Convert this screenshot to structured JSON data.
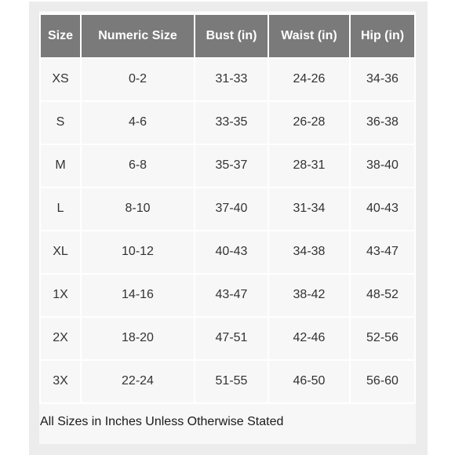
{
  "table": {
    "headers": [
      "Size",
      "Numeric Size",
      "Bust (in)",
      "Waist (in)",
      "Hip (in)"
    ],
    "rows": [
      [
        "XS",
        "0-2",
        "31-33",
        "24-26",
        "34-36"
      ],
      [
        "S",
        "4-6",
        "33-35",
        "26-28",
        "36-38"
      ],
      [
        "M",
        "6-8",
        "35-37",
        "28-31",
        "38-40"
      ],
      [
        "L",
        "8-10",
        "37-40",
        "31-34",
        "40-43"
      ],
      [
        "XL",
        "10-12",
        "40-43",
        "34-38",
        "43-47"
      ],
      [
        "1X",
        "14-16",
        "43-47",
        "38-42",
        "48-52"
      ],
      [
        "2X",
        "18-20",
        "47-51",
        "42-46",
        "52-56"
      ],
      [
        "3X",
        "22-24",
        "51-55",
        "46-50",
        "56-60"
      ]
    ]
  },
  "footer_note": "All Sizes in Inches Unless Otherwise Stated",
  "colors": {
    "header_bg": "#7a7a7a",
    "header_text": "#ffffff",
    "cell_bg": "#f7f7f7",
    "frame_bg": "#ececec"
  }
}
